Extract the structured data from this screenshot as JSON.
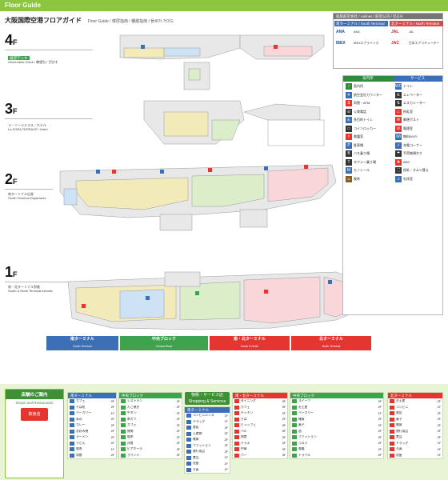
{
  "header": {
    "guide_title": "Floor Guide",
    "page_title": "大阪国際空港フロアガイド",
    "sub_title": "Floor Guide / 楼层指南 / 樓層指南 / 플로어 가이드"
  },
  "airlines": {
    "head": "就航航空会社 / Airlines / 航空公司 / 항공사",
    "south": {
      "title": "南ターミナル / South Terminal",
      "items": [
        {
          "logo": "ANA",
          "name": "ANA"
        },
        {
          "logo": "IBEX",
          "name": "IBEXエアラインズ"
        }
      ]
    },
    "north": {
      "title": "北ターミナル / North Terminal",
      "items": [
        {
          "logo": "JAL",
          "name": "JAL"
        },
        {
          "logo": "JAC",
          "name": "日本エアコミューター"
        }
      ]
    }
  },
  "floors": [
    {
      "num": "4",
      "f": "F",
      "note_title": "展望デッキ",
      "note_body": "Observation Deck / 瞭望台 / 전망대"
    },
    {
      "num": "3",
      "f": "F",
      "note_title": "ラ・ソーラテラス／ホテル",
      "note_body": "La SORA TERRACE / Hotel"
    },
    {
      "num": "2",
      "f": "F",
      "note_title": "南ターミナル出発",
      "note_body": "South Terminal Departures"
    },
    {
      "num": "1",
      "f": "F",
      "note_title": "南・北ターミナル到着",
      "note_body": "South & North Terminal Arrivals"
    }
  ],
  "legend": {
    "head_left": "案内所",
    "head_right": "サービス",
    "left_items": [
      {
        "icon": "i",
        "color": "#2f8a3a",
        "label": "案内所"
      },
      {
        "icon": "✈",
        "color": "#3b6fb6",
        "label": "航空会社カウンター"
      },
      {
        "icon": "$",
        "color": "#e5352f",
        "label": "両替・ATM"
      },
      {
        "icon": "☏",
        "color": "#333333",
        "label": "公衆電話"
      },
      {
        "icon": "♿",
        "color": "#3b6fb6",
        "label": "多目的トイレ"
      },
      {
        "icon": "▭",
        "color": "#333333",
        "label": "コインロッカー"
      },
      {
        "icon": "⚕",
        "color": "#e5352f",
        "label": "救護室"
      },
      {
        "icon": "P",
        "color": "#3b6fb6",
        "label": "駐車場"
      },
      {
        "icon": "B",
        "color": "#333333",
        "label": "バス乗り場"
      },
      {
        "icon": "T",
        "color": "#333333",
        "label": "タクシー乗り場"
      },
      {
        "icon": "M",
        "color": "#3b6fb6",
        "label": "モノレール"
      },
      {
        "icon": "☕",
        "color": "#8b5a2b",
        "label": "喫茶"
      }
    ],
    "right_items": [
      {
        "icon": "WC",
        "color": "#3b6fb6",
        "label": "トイレ"
      },
      {
        "icon": "E",
        "color": "#333333",
        "label": "エレベーター"
      },
      {
        "icon": "⇅",
        "color": "#333333",
        "label": "エスカレーター"
      },
      {
        "icon": "♨",
        "color": "#e5352f",
        "label": "授乳室"
      },
      {
        "icon": "✉",
        "color": "#e5352f",
        "label": "郵便ポスト"
      },
      {
        "icon": "⊘",
        "color": "#e5352f",
        "label": "喫煙室"
      },
      {
        "icon": "Wi",
        "color": "#3b6fb6",
        "label": "無料Wi-Fi"
      },
      {
        "icon": "⚡",
        "color": "#3b6fb6",
        "label": "充電コーナー"
      },
      {
        "icon": "☂",
        "color": "#333333",
        "label": "手荷物預かり"
      },
      {
        "icon": "✚",
        "color": "#e5352f",
        "label": "AED"
      },
      {
        "icon": "⛶",
        "color": "#333333",
        "label": "授乳・オムツ替え"
      },
      {
        "icon": "♫",
        "color": "#3b6fb6",
        "label": "礼拝室"
      }
    ]
  },
  "terminals": [
    {
      "title": "南ターミナル",
      "sub": "South Terminal",
      "color": "#3b6fb6"
    },
    {
      "title": "中央ブロック",
      "sub": "Central Block",
      "color": "#3fa34d"
    },
    {
      "title": "南・北ターミナル",
      "sub": "South & North",
      "color": "#e5352f"
    },
    {
      "title": "北ターミナル",
      "sub": "North Terminal",
      "color": "#e5352f"
    }
  ],
  "directory": {
    "intro_title": "店舗のご案内",
    "intro_sub": "Shops and Restaurants",
    "intro_badge": "飲食店",
    "panels": [
      {
        "head": "南ターミナル",
        "color": "#3b6fb6",
        "rows": [
          {
            "name": "カフェ",
            "floor": "2F"
          },
          {
            "name": "そば処",
            "floor": "2F"
          },
          {
            "name": "ベーカリー",
            "floor": "1F"
          },
          {
            "name": "寿司",
            "floor": "2F"
          },
          {
            "name": "カレー",
            "floor": "2F"
          },
          {
            "name": "お好み焼",
            "floor": "2F"
          },
          {
            "name": "ラーメン",
            "floor": "2F"
          },
          {
            "name": "うどん",
            "floor": "2F"
          },
          {
            "name": "喫茶",
            "floor": "1F"
          },
          {
            "name": "和食",
            "floor": "2F"
          }
        ]
      },
      {
        "head": "中央ブロック",
        "color": "#3fa34d",
        "rows": [
          {
            "name": "レストラン",
            "floor": "2F"
          },
          {
            "name": "たこ焼き",
            "floor": "2F"
          },
          {
            "name": "牛タン",
            "floor": "2F"
          },
          {
            "name": "串カツ",
            "floor": "2F"
          },
          {
            "name": "カフェ",
            "floor": "2F"
          },
          {
            "name": "焼肉",
            "floor": "2F"
          },
          {
            "name": "喫茶",
            "floor": "2F"
          },
          {
            "name": "洋食",
            "floor": "2F"
          },
          {
            "name": "ビアホール",
            "floor": "3F"
          },
          {
            "name": "ラウンジ",
            "floor": "3F"
          }
        ]
      },
      {
        "head": "南・北ターミナル",
        "color": "#e5352f",
        "rows": [
          {
            "name": "ダイニング",
            "floor": "3F"
          },
          {
            "name": "カフェ",
            "floor": "3F"
          },
          {
            "name": "キッチン",
            "floor": "2F"
          },
          {
            "name": "そば",
            "floor": "2F"
          },
          {
            "name": "ビュッフェ",
            "floor": "3F"
          },
          {
            "name": "バル",
            "floor": "3F"
          },
          {
            "name": "和食",
            "floor": "3F"
          },
          {
            "name": "テラス",
            "floor": "3F"
          },
          {
            "name": "中華",
            "floor": "3F"
          },
          {
            "name": "バー",
            "floor": "3F"
          }
        ]
      },
      {
        "head": "南ターミナル",
        "color": "#3b6fb6",
        "rows": [
          {
            "name": "コンビニエンス",
            "floor": "1F"
          },
          {
            "name": "ドラッグ",
            "floor": "1F"
          },
          {
            "name": "書店",
            "floor": "2F"
          },
          {
            "name": "土産物",
            "floor": "2F"
          },
          {
            "name": "雑貨",
            "floor": "2F"
          },
          {
            "name": "ファッション",
            "floor": "2F"
          },
          {
            "name": "旅行用品",
            "floor": "2F"
          },
          {
            "name": "食品",
            "floor": "1F"
          },
          {
            "name": "花屋",
            "floor": "1F"
          },
          {
            "name": "写真",
            "floor": "1F"
          }
        ]
      },
      {
        "head": "中央ブロック",
        "color": "#3fa34d",
        "rows": [
          {
            "name": "スイーツ",
            "floor": "2F"
          },
          {
            "name": "お土産",
            "floor": "2F"
          },
          {
            "name": "ベーカリー",
            "floor": "1F"
          },
          {
            "name": "雑貨",
            "floor": "2F"
          },
          {
            "name": "菓子",
            "floor": "2F"
          },
          {
            "name": "酒",
            "floor": "2F"
          },
          {
            "name": "ファッション",
            "floor": "2F"
          },
          {
            "name": "コスメ",
            "floor": "2F"
          },
          {
            "name": "書籍",
            "floor": "2F"
          },
          {
            "name": "トラベル",
            "floor": "2F"
          }
        ]
      },
      {
        "head": "北ターミナル",
        "color": "#e5352f",
        "rows": [
          {
            "name": "お土産",
            "floor": "2F"
          },
          {
            "name": "コンビニ",
            "floor": "1F"
          },
          {
            "name": "書店",
            "floor": "2F"
          },
          {
            "name": "菓子",
            "floor": "2F"
          },
          {
            "name": "雑貨",
            "floor": "2F"
          },
          {
            "name": "旅行用品",
            "floor": "2F"
          },
          {
            "name": "食品",
            "floor": "2F"
          },
          {
            "name": "ドラッグ",
            "floor": "1F"
          },
          {
            "name": "写真",
            "floor": "1F"
          },
          {
            "name": "花屋",
            "floor": "1F"
          }
        ]
      }
    ],
    "svc_head": "物販・サービス店",
    "svc_sub": "Shopping & Services"
  }
}
